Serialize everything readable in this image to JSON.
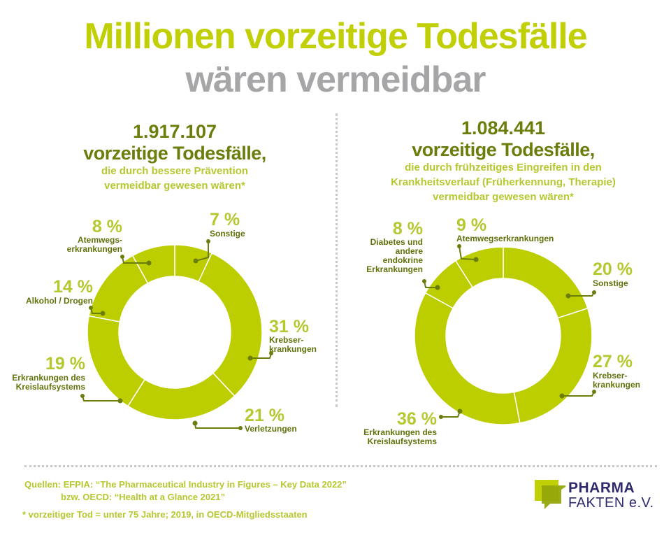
{
  "header": {
    "title_line1": "Millionen vorzeitige Todesfälle",
    "title_line2": "wären vermeidbar"
  },
  "colors": {
    "accent_lime": "#c0cf06",
    "title_gray": "#a6a6a8",
    "dark_olive": "#6b7d0a",
    "label_lime": "#b5c830",
    "segment_fill": "#bccd00",
    "logo_navy": "#2d2a6e"
  },
  "left_panel": {
    "count": "1.917.107",
    "count_label": "vorzeitige Todesfälle,",
    "subtitle_line1": "die durch bessere Prävention",
    "subtitle_line2": "vermeidbar gewesen wären*"
  },
  "right_panel": {
    "count": "1.084.441",
    "count_label": "vorzeitige Todesfälle,",
    "subtitle_line1": "die durch frühzeitiges Eingreifen in den",
    "subtitle_line2": "Krankheitsverlauf (Früherkennung, Therapie)",
    "subtitle_line3": "vermeidbar gewesen wären*"
  },
  "chart_data": [
    {
      "type": "pie",
      "variant": "donut",
      "title": "1.917.107 vorzeitige Todesfälle, die durch bessere Prävention vermeidbar gewesen wären*",
      "start": "12 o'clock, clockwise",
      "slices": [
        {
          "label": "Sonstige",
          "value": 7,
          "pct_label": "7 %",
          "label_lines": [
            "Sonstige"
          ]
        },
        {
          "label": "Krebserkrankungen",
          "value": 31,
          "pct_label": "31 %",
          "label_lines": [
            "Krebser-",
            "krankungen"
          ]
        },
        {
          "label": "Verletzungen",
          "value": 21,
          "pct_label": "21 %",
          "label_lines": [
            "Verletzungen"
          ]
        },
        {
          "label": "Erkrankungen des Kreislaufsystems",
          "value": 19,
          "pct_label": "19 %",
          "label_lines": [
            "Erkrankungen des",
            "Kreislaufsystems"
          ]
        },
        {
          "label": "Alkohol / Drogen",
          "value": 14,
          "pct_label": "14 %",
          "label_lines": [
            "Alkohol / Drogen"
          ]
        },
        {
          "label": "Atemwegserkrankungen",
          "value": 8,
          "pct_label": "8 %",
          "label_lines": [
            "Atemwegs-",
            "erkrankungen"
          ]
        }
      ]
    },
    {
      "type": "pie",
      "variant": "donut",
      "title": "1.084.441 vorzeitige Todesfälle, die durch frühzeitiges Eingreifen in den Krankheitsverlauf (Früherkennung, Therapie) vermeidbar gewesen wären*",
      "start": "12 o'clock, clockwise",
      "slices": [
        {
          "label": "Sonstige",
          "value": 20,
          "pct_label": "20 %",
          "label_lines": [
            "Sonstige"
          ]
        },
        {
          "label": "Krebserkrankungen",
          "value": 27,
          "pct_label": "27 %",
          "label_lines": [
            "Krebser-",
            "krankungen"
          ]
        },
        {
          "label": "Erkrankungen des Kreislaufsystems",
          "value": 36,
          "pct_label": "36 %",
          "label_lines": [
            "Erkrankungen des",
            "Kreislaufsystems"
          ]
        },
        {
          "label": "Diabetes und andere endokrine Erkrankungen",
          "value": 8,
          "pct_label": "8 %",
          "label_lines": [
            "Diabetes und",
            "andere",
            "endokrine",
            "Erkrankungen"
          ]
        },
        {
          "label": "Atemwegserkrankungen",
          "value": 9,
          "pct_label": "9 %",
          "label_lines": [
            "Atemwegserkrankungen"
          ]
        }
      ]
    }
  ],
  "footer": {
    "sources_line1": "Quellen: EFPIA: “The Pharmaceutical Industry in Figures – Key Data 2022”",
    "sources_line2": "bzw. OECD: “Health at a Glance 2021”",
    "footnote": "* vorzeitiger Tod = unter 75 Jahre; 2019, in OECD-Mitgliedsstaaten"
  },
  "logo": {
    "line1": "PHARMA",
    "line2": "FAKTEN e.V."
  }
}
